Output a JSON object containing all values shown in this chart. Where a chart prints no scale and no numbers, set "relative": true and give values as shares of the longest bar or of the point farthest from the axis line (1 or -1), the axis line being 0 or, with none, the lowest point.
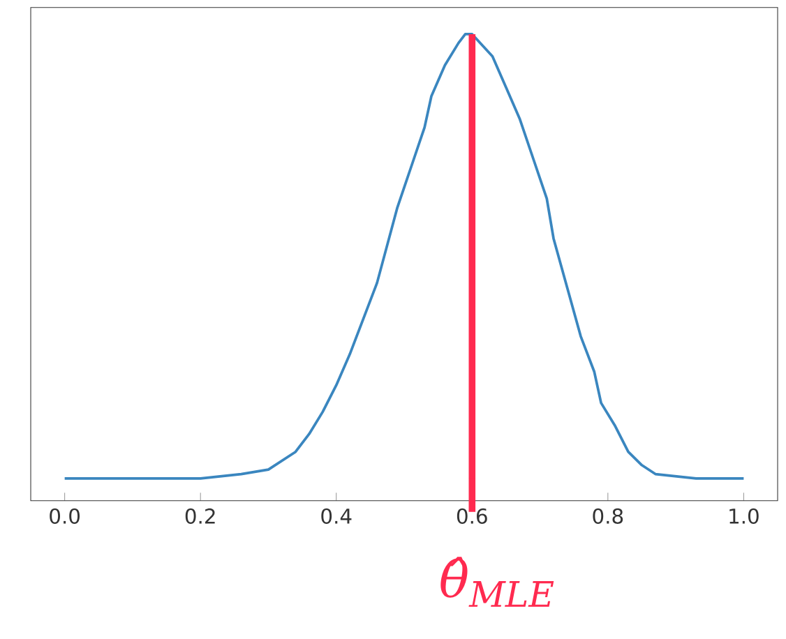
{
  "chart_data": {
    "type": "line",
    "relative": true,
    "grid": false,
    "marker": "none",
    "line_style": "solid",
    "tick_labels": "x",
    "xlim": [
      -0.05,
      1.05
    ],
    "xticks": [
      {
        "value": 0.0,
        "label": "0.0"
      },
      0.2,
      0.4,
      0.6,
      0.8,
      {
        "value": 1.0,
        "label": "1.0"
      }
    ],
    "series": [
      {
        "color": "#3a86bf",
        "x": [
          0.0,
          0.1,
          0.2,
          0.26,
          0.3,
          0.34,
          0.36,
          0.38,
          0.4,
          0.42,
          0.44,
          0.46,
          0.49,
          0.51,
          0.53,
          0.54,
          0.56,
          0.58,
          0.59,
          0.6,
          0.63,
          0.65,
          0.67,
          0.69,
          0.71,
          0.72,
          0.74,
          0.76,
          0.78,
          0.79,
          0.81,
          0.83,
          0.85,
          0.87,
          0.93,
          1.0
        ],
        "values": [
          0,
          0,
          0,
          0.01,
          0.02,
          0.06,
          0.1,
          0.15,
          0.21,
          0.28,
          0.36,
          0.44,
          0.61,
          0.7,
          0.79,
          0.86,
          0.93,
          0.98,
          1.0,
          1.0,
          0.95,
          0.88,
          0.81,
          0.72,
          0.63,
          0.54,
          0.43,
          0.32,
          0.24,
          0.17,
          0.12,
          0.06,
          0.03,
          0.01,
          0,
          0
        ]
      }
    ],
    "ref_lines": [
      {
        "axis": "x",
        "value": 0.6,
        "label": "θ̂$_{MLE}$",
        "color": "#ff2a4f",
        "line_style": "solid"
      }
    ]
  }
}
